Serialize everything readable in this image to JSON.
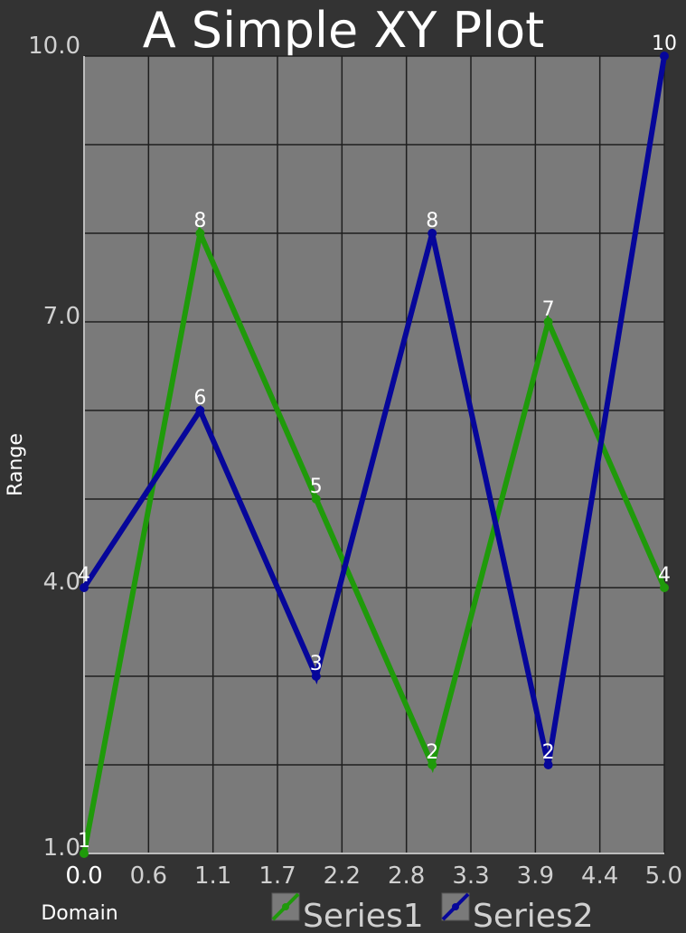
{
  "chart_data": {
    "type": "line",
    "title": "A Simple XY Plot",
    "xlabel": "Domain",
    "ylabel": "Range",
    "xlim": [
      0,
      5
    ],
    "ylim": [
      1,
      10
    ],
    "x_tick_labels": [
      "0.0",
      "0.6",
      "1.1",
      "1.7",
      "2.2",
      "2.8",
      "3.3",
      "3.9",
      "4.4",
      "5.0"
    ],
    "y_tick_labels": [
      {
        "value": 1,
        "label": "1.0"
      },
      {
        "value": 4,
        "label": "4.0"
      },
      {
        "value": 7,
        "label": "7.0"
      },
      {
        "value": 10,
        "label": "10.0"
      }
    ],
    "grid": true,
    "legend": "bottom",
    "background_color": "#333333",
    "plot_background_color": "#7a7a7a",
    "series": [
      {
        "name": "Series1",
        "color": "#1f9a0a",
        "x": [
          0,
          1,
          2,
          3,
          4,
          5
        ],
        "y": [
          1,
          8,
          5,
          2,
          7,
          4
        ],
        "labels": [
          "1",
          "8",
          "5",
          "2",
          "7",
          "4"
        ]
      },
      {
        "name": "Series2",
        "color": "#06069a",
        "x": [
          0,
          1,
          2,
          3,
          4,
          5
        ],
        "y": [
          4,
          6,
          3,
          8,
          2,
          10
        ],
        "labels": [
          "4",
          "6",
          "3",
          "8",
          "2",
          "10"
        ]
      }
    ]
  }
}
